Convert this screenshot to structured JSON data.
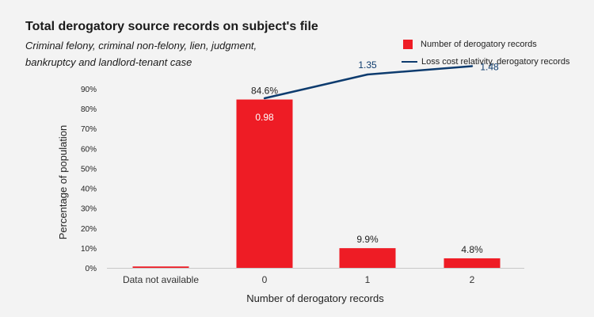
{
  "title": "Total derogatory source records on subject's file",
  "subtitle": "Criminal felony, criminal non-felony, lien, judgment, bankruptcy and landlord-tenant case",
  "legend": {
    "bar_label": "Number of derogatory records",
    "line_label": "Loss cost relativity, derogatory records"
  },
  "colors": {
    "bar": "#ee1c25",
    "line": "#0d3b6e"
  },
  "chart_data": {
    "type": "bar",
    "title": "Total derogatory source records on subject's file",
    "xlabel": "Number of derogatory records",
    "ylabel": "Percentage of population",
    "categories": [
      "Data not available",
      "0",
      "1",
      "2"
    ],
    "ylim": [
      0,
      90
    ],
    "yticks": [
      0,
      10,
      20,
      30,
      40,
      50,
      60,
      70,
      80,
      90
    ],
    "ytick_labels": [
      "0%",
      "10%",
      "20%",
      "30%",
      "40%",
      "50%",
      "60%",
      "70%",
      "80%",
      "90%"
    ],
    "series": [
      {
        "name": "Number of derogatory records",
        "type": "bar",
        "values": [
          0.7,
          84.6,
          9.9,
          4.8
        ],
        "labels": [
          "",
          "84.6%",
          "9.9%",
          "4.8%"
        ]
      },
      {
        "name": "Loss cost relativity, derogatory records",
        "type": "line",
        "x": [
          "0",
          "1",
          "2"
        ],
        "values": [
          0.98,
          1.35,
          1.48
        ],
        "labels": [
          "0.98",
          "1.35",
          "1.48"
        ]
      }
    ],
    "grid": false,
    "legend_position": "top-right"
  }
}
